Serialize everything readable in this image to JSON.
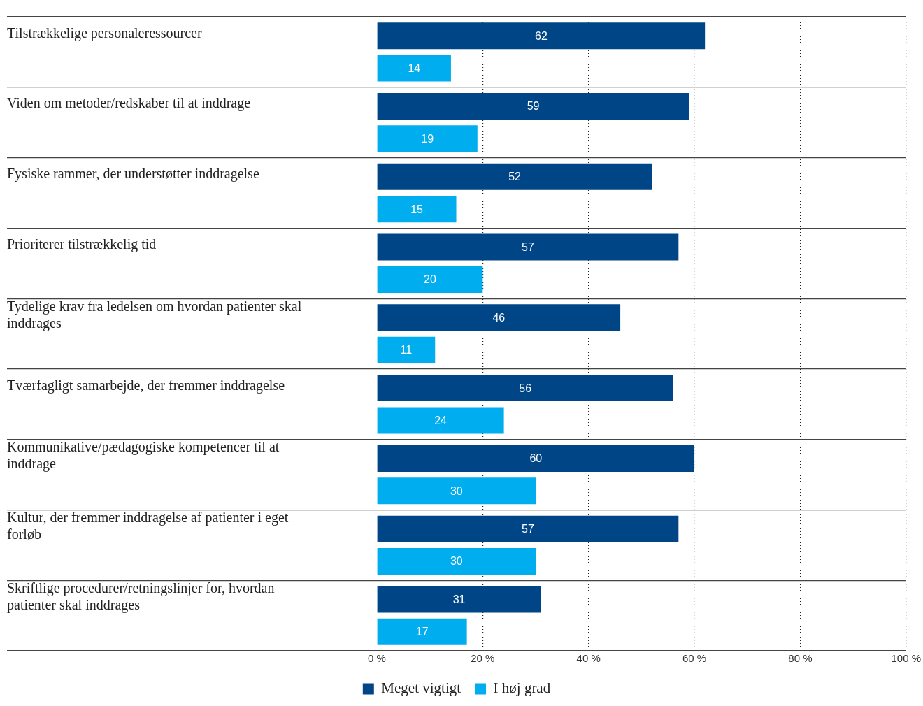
{
  "chart_data": {
    "type": "bar",
    "orientation": "horizontal",
    "categories": [
      "Tilstrækkelige personaleressourcer",
      "Viden om metoder/redskaber til at inddrage",
      "Fysiske rammer, der understøtter inddragelse",
      "Prioriterer tilstrækkelig tid",
      "Tydelige krav fra ledelsen om hvordan patienter skal inddrages",
      "Tværfagligt samarbejde, der fremmer inddragelse",
      "Kommunikative/pædagogiske kompetencer til at inddrage",
      "Kultur, der fremmer inddragelse af patienter i eget forløb",
      "Skriftlige procedurer/retningslinjer for, hvordan patienter skal inddrages"
    ],
    "series": [
      {
        "name": "Meget vigtigt",
        "color": "#004687",
        "values": [
          62,
          59,
          52,
          57,
          46,
          56,
          60,
          57,
          31
        ]
      },
      {
        "name": "I høj grad",
        "color": "#00adef",
        "values": [
          14,
          19,
          15,
          20,
          11,
          24,
          30,
          30,
          17
        ]
      }
    ],
    "xlim": [
      0,
      100
    ],
    "xticks": [
      {
        "value": 0,
        "label": "0 %"
      },
      {
        "value": 20,
        "label": "20 %"
      },
      {
        "value": 40,
        "label": "40 %"
      },
      {
        "value": 60,
        "label": "60 %"
      },
      {
        "value": 80,
        "label": "80 %"
      },
      {
        "value": 100,
        "label": "100 %"
      }
    ],
    "grid": true,
    "legend": "bottom",
    "data_labels": true
  }
}
